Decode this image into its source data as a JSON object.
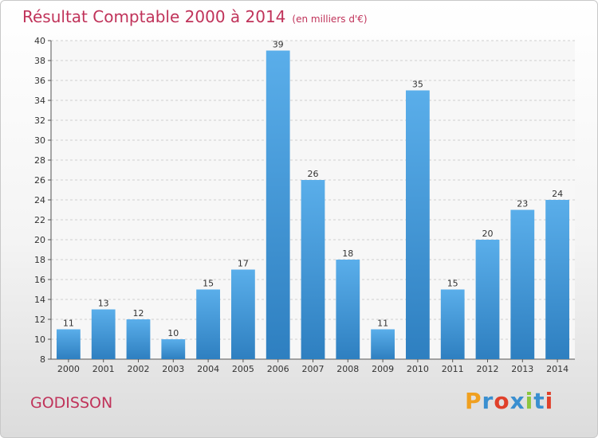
{
  "chart_data": {
    "type": "bar",
    "title": "Résultat Comptable 2000 à 2014",
    "subtitle": "(en milliers d'€)",
    "xlabel": "",
    "ylabel": "",
    "categories": [
      "2000",
      "2001",
      "2002",
      "2003",
      "2004",
      "2005",
      "2006",
      "2007",
      "2008",
      "2009",
      "2010",
      "2011",
      "2012",
      "2013",
      "2014"
    ],
    "values": [
      11,
      13,
      12,
      10,
      15,
      17,
      39,
      26,
      18,
      11,
      35,
      15,
      20,
      23,
      24
    ],
    "ylim": [
      8,
      40
    ],
    "yticks": [
      8,
      10,
      12,
      14,
      16,
      18,
      20,
      22,
      24,
      26,
      28,
      30,
      32,
      34,
      36,
      38,
      40
    ],
    "grid": true,
    "bar_color": "#4a9fe0"
  },
  "location": "GODISSON",
  "logo": {
    "letters": [
      "P",
      "r",
      "o",
      "x",
      "i",
      "t",
      "i"
    ],
    "colors": [
      "#f0a020",
      "#3a8fd0",
      "#e0402a",
      "#3a8fd0",
      "#8cc63f",
      "#3a8fd0",
      "#e0402a"
    ]
  }
}
